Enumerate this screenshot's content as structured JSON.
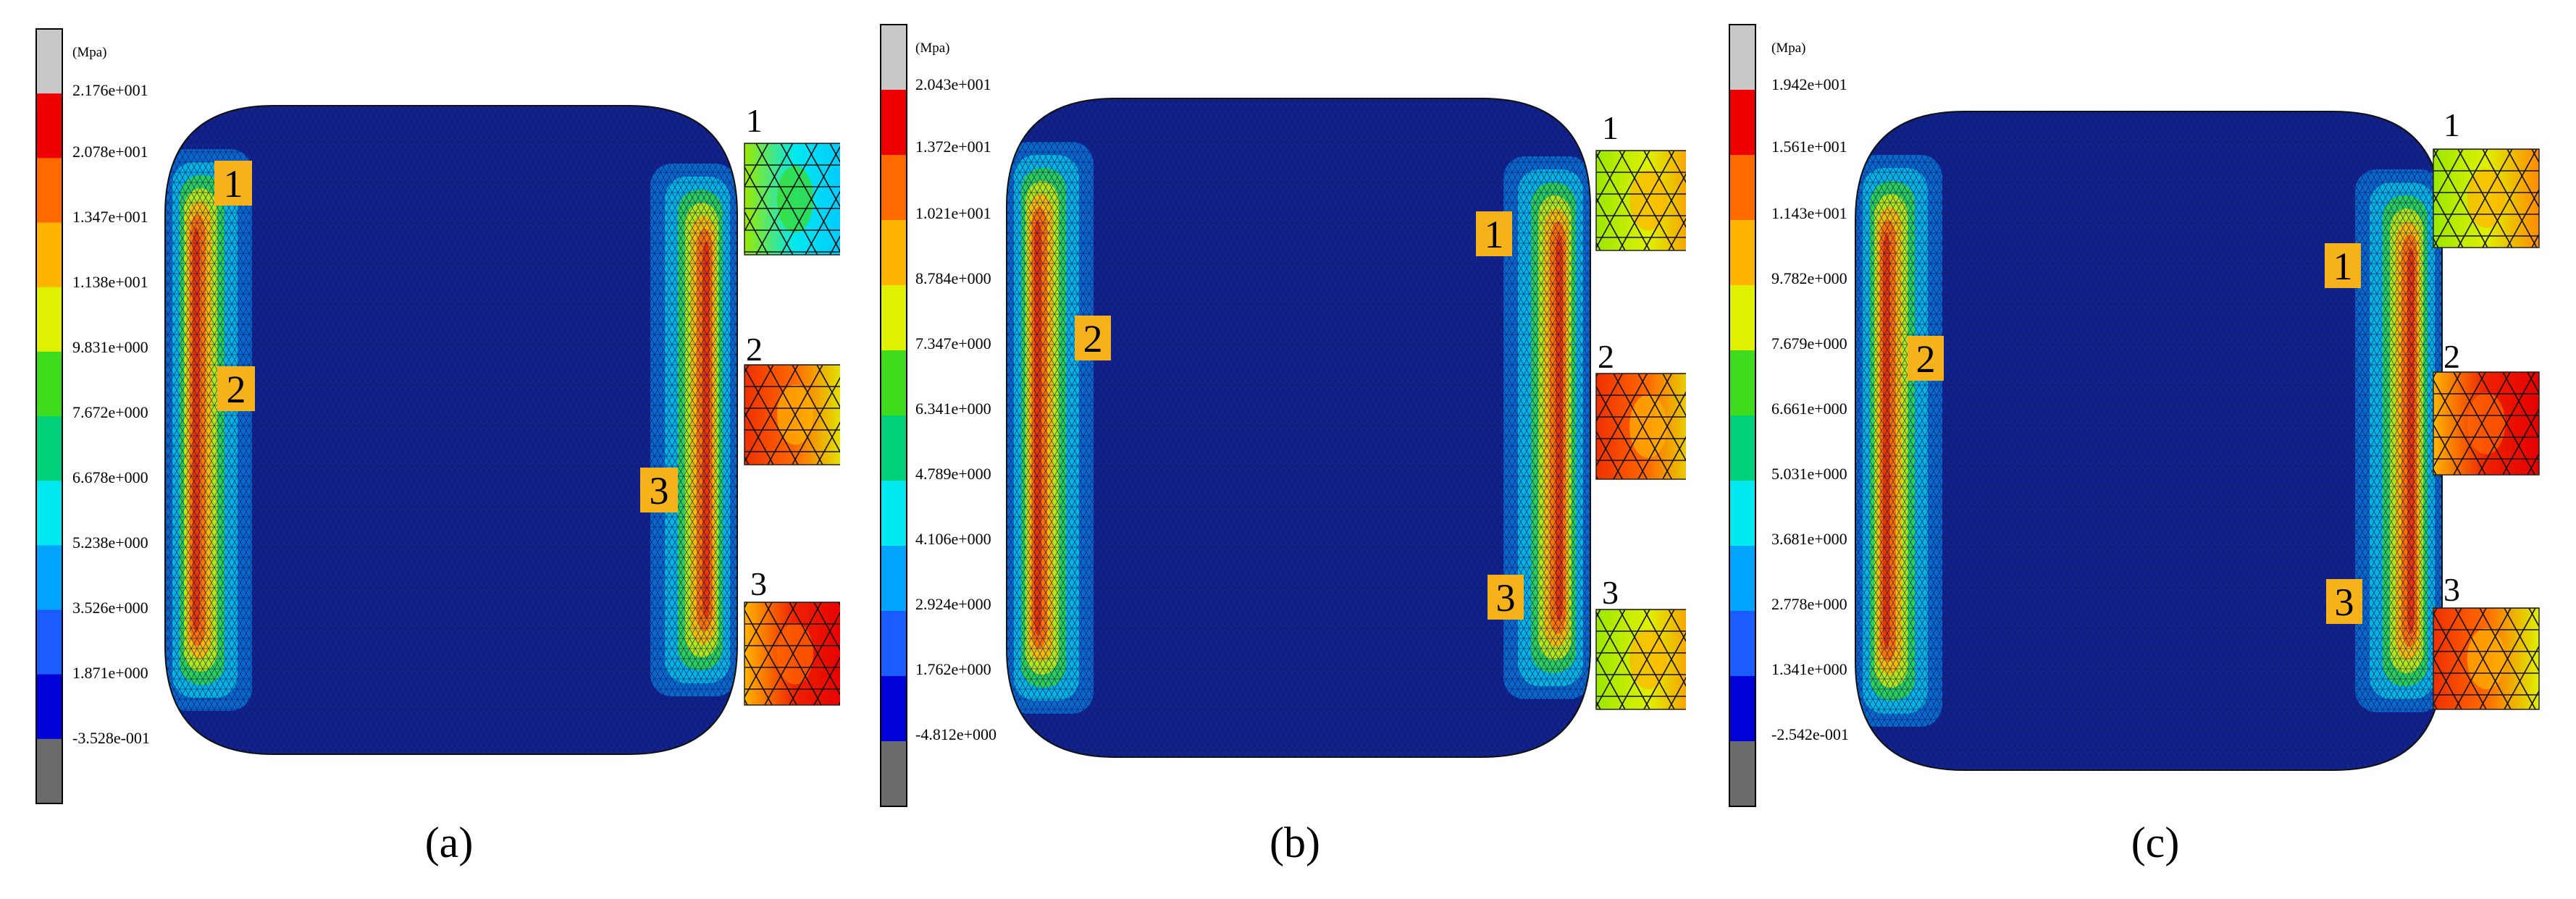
{
  "colors": {
    "scale": [
      "#6b6b6b",
      "#0000d8",
      "#1a5cff",
      "#00a4ff",
      "#00e8f0",
      "#00d07a",
      "#3edc1c",
      "#dff000",
      "#ffb400",
      "#ff6a00",
      "#ee0000",
      "#c8c8c8"
    ],
    "plate": "#12228f",
    "marker_bg": "#f6b21b"
  },
  "panels": [
    {
      "caption": "(a)",
      "unit": "(Mpa)",
      "ticks": [
        "2.176e+001",
        "2.078e+001",
        "1.347e+001",
        "1.138e+001",
        "9.831e+000",
        "7.672e+000",
        "6.678e+000",
        "5.238e+000",
        "3.526e+000",
        "1.871e+000",
        "-3.528e-001"
      ],
      "markers": [
        "1",
        "2",
        "3"
      ],
      "insets": [
        "1",
        "2",
        "3"
      ]
    },
    {
      "caption": "(b)",
      "unit": "(Mpa)",
      "ticks": [
        "2.043e+001",
        "1.372e+001",
        "1.021e+001",
        "8.784e+000",
        "7.347e+000",
        "6.341e+000",
        "4.789e+000",
        "4.106e+000",
        "2.924e+000",
        "1.762e+000",
        "-4.812e+000"
      ],
      "markers": [
        "1",
        "2",
        "3"
      ],
      "insets": [
        "1",
        "2",
        "3"
      ]
    },
    {
      "caption": "(c)",
      "unit": "(Mpa)",
      "ticks": [
        "1.942e+001",
        "1.561e+001",
        "1.143e+001",
        "9.782e+000",
        "7.679e+000",
        "6.661e+000",
        "5.031e+000",
        "3.681e+000",
        "2.778e+000",
        "1.341e+000",
        "-2.542e-001"
      ],
      "markers": [
        "1",
        "2",
        "3"
      ],
      "insets": [
        "1",
        "2",
        "3"
      ]
    }
  ]
}
